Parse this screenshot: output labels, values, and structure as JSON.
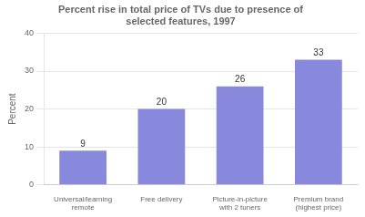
{
  "chart_data": {
    "type": "bar",
    "title": "Percent rise in total price of TVs due to presence of\nselected features, 1997",
    "categories": [
      "Universal/learning\nremote",
      "Free delivery",
      "Picture-in-picture\nwith 2 tuners",
      "Premium brand\n(highest price)"
    ],
    "values": [
      9,
      20,
      26,
      33
    ],
    "color": "#8888dd",
    "ylabel": "Percent",
    "ylim": [
      0,
      40
    ],
    "yticks": [
      0,
      10,
      20,
      30,
      40
    ],
    "grid": true,
    "data_labels": true
  }
}
